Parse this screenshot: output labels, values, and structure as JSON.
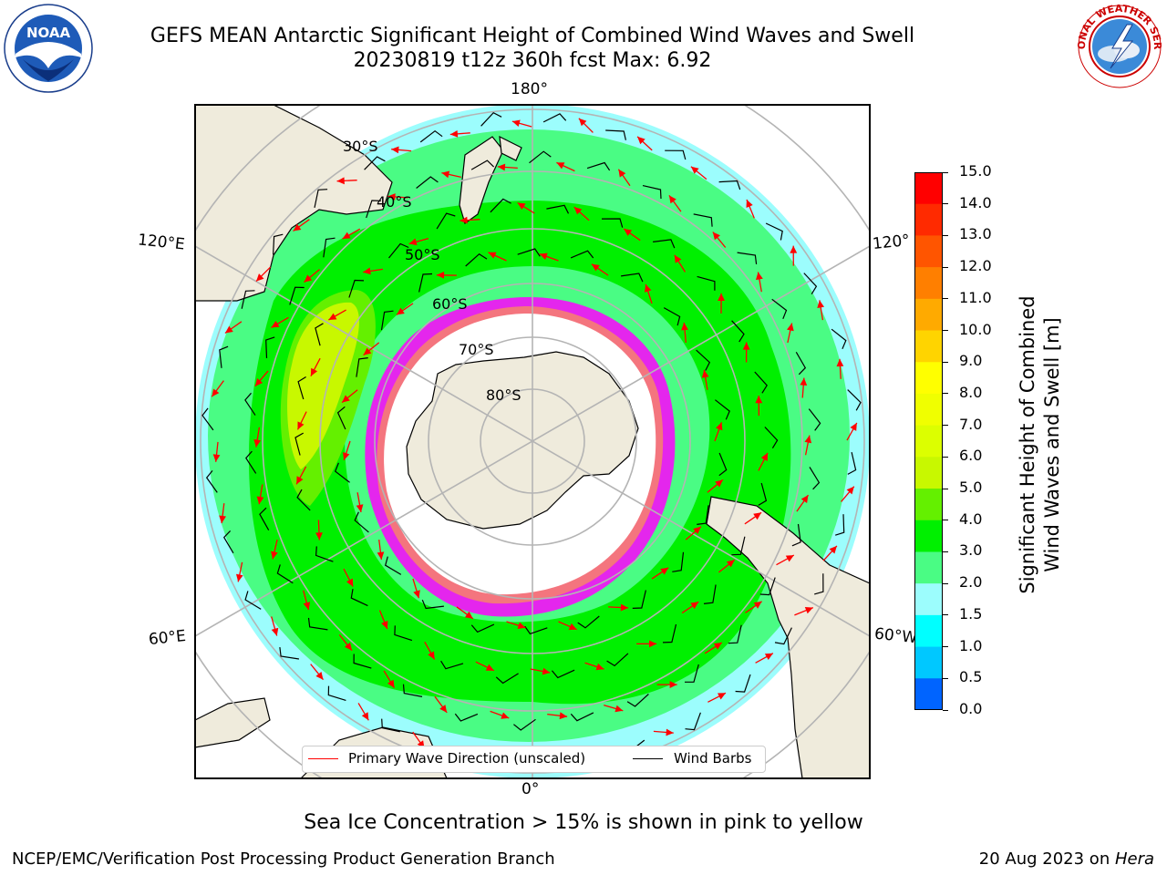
{
  "header": {
    "title_line1": "GEFS MEAN Antarctic Significant Height of Combined Wind Waves and Swell",
    "title_line2": "20230819 t12z 360h fcst   Max: 6.92"
  },
  "logos": {
    "left": {
      "name": "noaa-logo",
      "text": "NOAA",
      "ring_text": "NATIONAL OCEANIC AND ATMOSPHERIC ADMINISTRATION · U.S. DEPARTMENT OF COMMERCE"
    },
    "right": {
      "name": "nws-logo",
      "ring_text": "NATIONAL WEATHER SERVICE"
    }
  },
  "map": {
    "projection": "south-polar-stereographic",
    "longitude_labels": {
      "top": "180°",
      "bottom": "0°",
      "left_upper": "120°E",
      "left_lower": "60°E",
      "right_upper": "120°",
      "right_lower": "60°W"
    },
    "latitude_labels": [
      "30°S",
      "40°S",
      "50°S",
      "60°S",
      "70°S",
      "80°S"
    ],
    "colors": {
      "land": "#efebdc",
      "ocean_low": "#9cfdfd",
      "ocean_mid": "#4afc84",
      "ocean_high": "#00f000",
      "ocean_peak": "#c8f800",
      "ice_edge": "#ff00ff",
      "ice_fill": "#ffffff",
      "arrow": "#ff0000",
      "barb": "#000000",
      "grid": "#b4b4b4"
    }
  },
  "legend": {
    "primary_wave": "Primary Wave Direction (unscaled)",
    "wind_barbs": "Wind Barbs"
  },
  "colorbar": {
    "label_line1": "Significant Height of Combined",
    "label_line2": "Wind Waves and Swell [m]",
    "ticks": [
      "15.0",
      "14.0",
      "13.0",
      "12.0",
      "11.0",
      "10.0",
      "9.0",
      "8.0",
      "7.0",
      "6.0",
      "5.0",
      "4.0",
      "3.0",
      "2.0",
      "1.5",
      "1.0",
      "0.5",
      "0.0"
    ],
    "colors": [
      "#ff0000",
      "#ff2a00",
      "#ff5500",
      "#ff7f00",
      "#ffaa00",
      "#ffd400",
      "#ffff00",
      "#f0ff00",
      "#dcff00",
      "#c8f800",
      "#64f000",
      "#00f000",
      "#4afc84",
      "#9cfdfd",
      "#00ffff",
      "#00c8ff",
      "#0064ff",
      "#0000ff"
    ]
  },
  "footer": {
    "note": "Sea Ice Concentration > 15% is shown in pink to yellow",
    "left": "NCEP/EMC/Verification Post Processing Product Generation Branch",
    "right_date": "20 Aug 2023 on ",
    "right_host": "Hera"
  }
}
